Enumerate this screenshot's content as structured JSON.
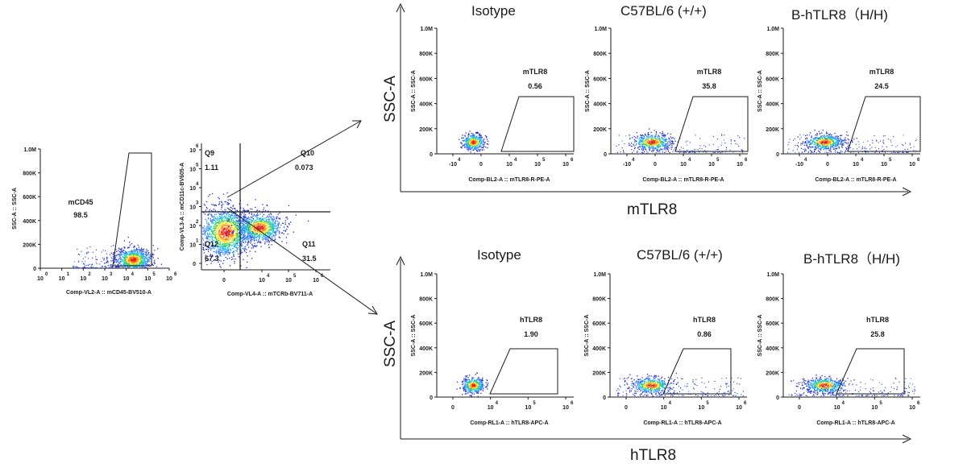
{
  "colors": {
    "ink": "#1a1a1a",
    "density": [
      "#1f2bd6",
      "#2f7cff",
      "#22c3e6",
      "#3fd06a",
      "#f2e23a",
      "#ff8a1a",
      "#e8211c"
    ]
  },
  "top_row": {
    "titles": [
      "Isotype",
      "C57BL/6 (+/+)",
      "B-hTLR8（H/H)"
    ],
    "y_axis_label": "SSC-A",
    "x_axis_label": "mTLR8"
  },
  "bottom_row": {
    "titles": [
      "Isotype",
      "C57BL/6 (+/+)",
      "B-hTLR8（H/H)"
    ],
    "y_axis_label": "SSC-A",
    "x_axis_label": "hTLR8"
  },
  "chart_data": [
    {
      "type": "scatter",
      "id": "cd45-gate",
      "xlabel": "Comp-VL2-A :: mCD45-BV510-A",
      "ylabel": "SSC-A :: SSC-A",
      "x_ticks": [
        "10",
        "10",
        "10",
        "10",
        "10",
        "10",
        "10"
      ],
      "x_tick_exps": [
        "0",
        "1",
        "2",
        "3",
        "4",
        "5",
        "6"
      ],
      "y_ticks": [
        "0",
        "200K",
        "400K",
        "600K",
        "800K",
        "1.0M"
      ],
      "gates": [
        {
          "name": "mCD45",
          "value": "98.5"
        }
      ]
    },
    {
      "type": "scatter",
      "id": "quadrant",
      "xlabel": "Comp-VL4-A :: mTCRb-BV711-A",
      "ylabel": "Comp-VL3-A :: mCD11c-BV605-A",
      "x_ticks": [
        "0",
        "10",
        "10",
        "10"
      ],
      "x_tick_exps": [
        "",
        "4",
        "5",
        "6"
      ],
      "y_ticks": [
        "0",
        "10",
        "10",
        "10",
        "10",
        "10",
        "10"
      ],
      "y_tick_exps": [
        "",
        "1",
        "2",
        "3",
        "4",
        "5",
        "6"
      ],
      "quadrants": [
        {
          "name": "Q9",
          "value": "1.11"
        },
        {
          "name": "Q10",
          "value": "0.073"
        },
        {
          "name": "Q11",
          "value": "31.5"
        },
        {
          "name": "Q12",
          "value": "67.3"
        }
      ]
    },
    {
      "type": "scatter",
      "id": "mtlr8-panels",
      "xlabel": "Comp-BL2-A :: mTLR8-R-PE-A",
      "ylabel": "SSC-A :: SSC-A",
      "x_ticks": [
        "-10",
        "0",
        "10",
        "10",
        "10"
      ],
      "x_tick_exps": [
        "4",
        "",
        "4",
        "5",
        "6"
      ],
      "y_ticks": [
        "0",
        "200K",
        "400K",
        "600K",
        "800K",
        "1.0M"
      ],
      "gate_name": "mTLR8",
      "values": [
        "0.56",
        "35.8",
        "24.5"
      ]
    },
    {
      "type": "scatter",
      "id": "htlr8-panels",
      "xlabel": "Comp-RL1-A :: hTLR8-APC-A",
      "ylabel": "SSC-A :: SSC-A",
      "x_ticks": [
        "0",
        "10",
        "10",
        "10"
      ],
      "x_tick_exps": [
        "",
        "4",
        "5",
        "6"
      ],
      "y_ticks": [
        "0",
        "200K",
        "400K",
        "600K",
        "800K",
        "1.0M"
      ],
      "gate_name": "hTLR8",
      "values": [
        "1.90",
        "0.86",
        "25.8"
      ]
    }
  ]
}
